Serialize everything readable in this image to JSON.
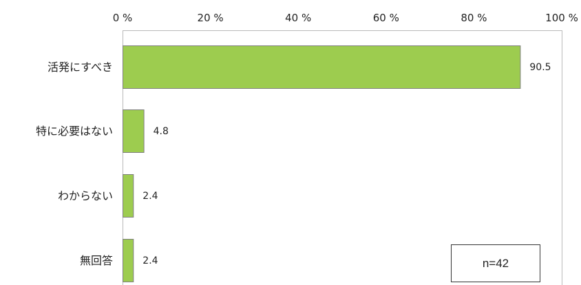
{
  "chart_data": {
    "type": "bar",
    "orientation": "horizontal",
    "categories": [
      "活発にすべき",
      "特に必要はない",
      "わからない",
      "無回答"
    ],
    "values": [
      90.5,
      4.8,
      2.4,
      2.4
    ],
    "xlim": [
      0,
      100
    ],
    "x_ticks": [
      0,
      20,
      40,
      60,
      80,
      100
    ],
    "x_tick_labels": [
      "0 %",
      "20 %",
      "40 %",
      "60 %",
      "80 %",
      "100 %"
    ],
    "axis_position": "top",
    "grid": false,
    "bar_color": "#9dcc4f",
    "annotation": "n=42"
  }
}
